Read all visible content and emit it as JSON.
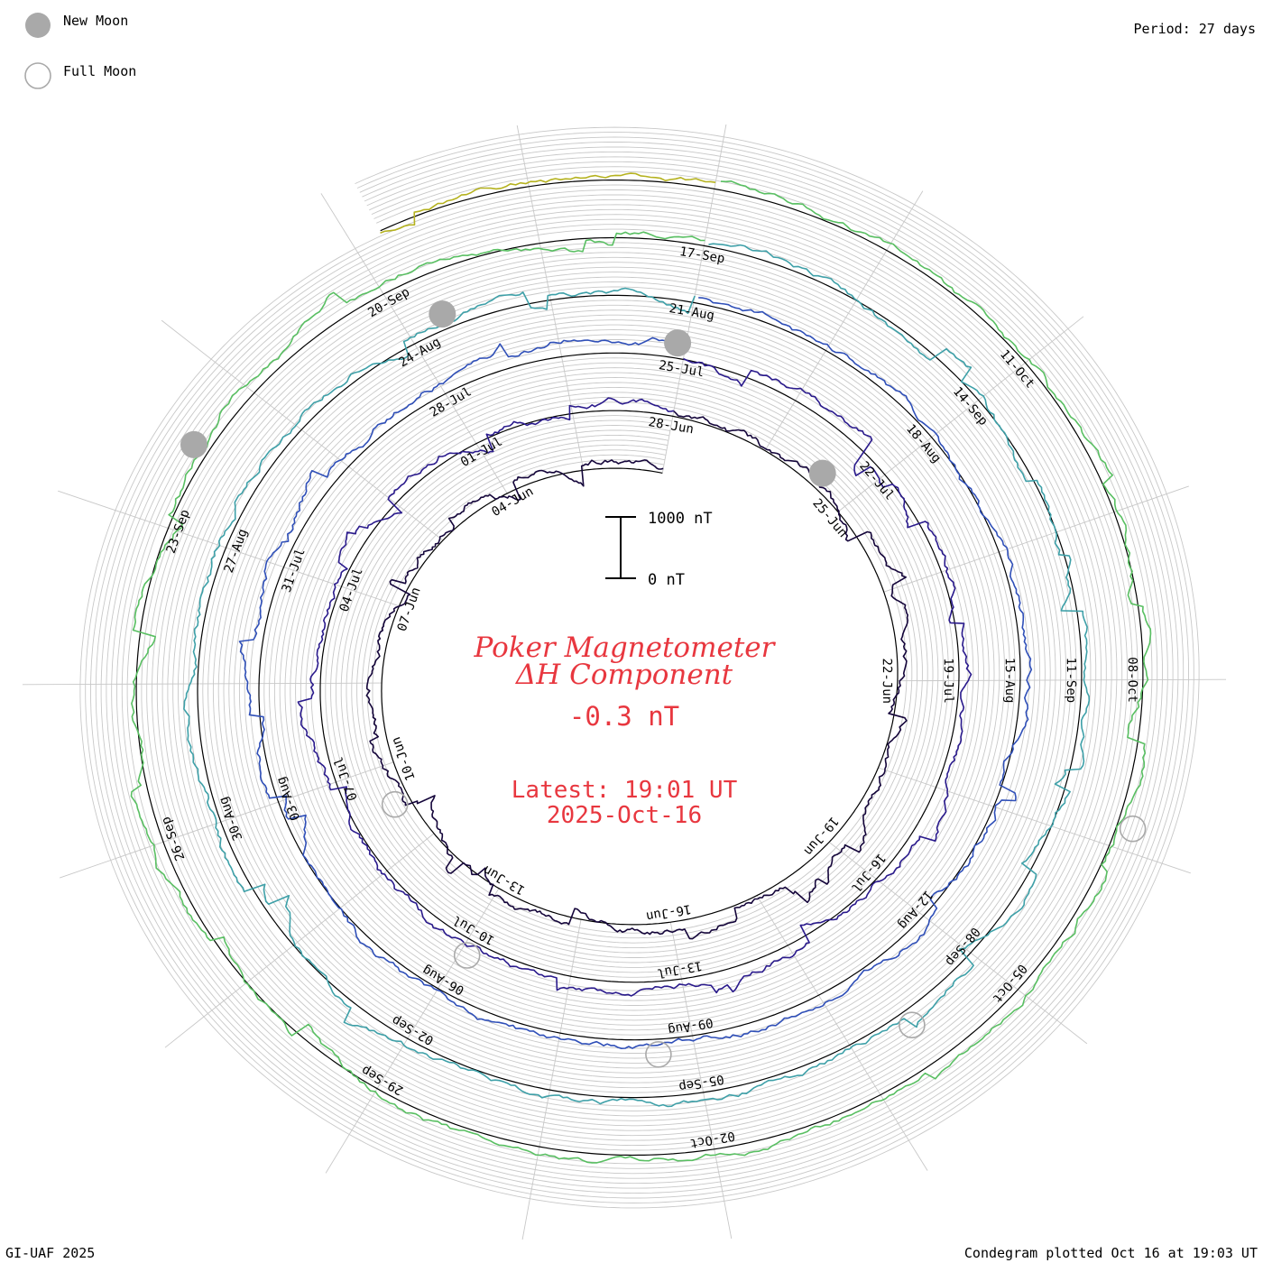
{
  "page": {
    "legend": {
      "new_moon_label": "New Moon",
      "full_moon_label": "Full Moon"
    },
    "period_label": "Period: 27 days",
    "footer_left": "GI-UAF 2025",
    "footer_right": "Condegram plotted Oct 16 at 19:03 UT"
  },
  "chart_data": {
    "type": "spiral-condegram",
    "title_line1": "Poker Magnetometer",
    "title_line2": "ΔH Component",
    "current_value": "-0.3 nT",
    "latest_time": "Latest: 19:01 UT",
    "latest_date": "2025-Oct-16",
    "scale_top_label": "1000 nT",
    "scale_bottom_label": "0 nT",
    "period_days": 27,
    "start_date": "2025-06-01",
    "end_date": "2025-10-16",
    "date_ticks": [
      {
        "label": "04-Jun",
        "day": 3
      },
      {
        "label": "07-Jun",
        "day": 6
      },
      {
        "label": "10-Jun",
        "day": 9
      },
      {
        "label": "13-Jun",
        "day": 12
      },
      {
        "label": "16-Jun",
        "day": 15
      },
      {
        "label": "19-Jun",
        "day": 18
      },
      {
        "label": "22-Jun",
        "day": 21
      },
      {
        "label": "25-Jun",
        "day": 24
      },
      {
        "label": "28-Jun",
        "day": 27
      },
      {
        "label": "01-Jul",
        "day": 30
      },
      {
        "label": "04-Jul",
        "day": 33
      },
      {
        "label": "07-Jul",
        "day": 36
      },
      {
        "label": "10-Jul",
        "day": 39
      },
      {
        "label": "13-Jul",
        "day": 42
      },
      {
        "label": "16-Jul",
        "day": 45
      },
      {
        "label": "19-Jul",
        "day": 48
      },
      {
        "label": "22-Jul",
        "day": 51
      },
      {
        "label": "25-Jul",
        "day": 54
      },
      {
        "label": "28-Jul",
        "day": 57
      },
      {
        "label": "31-Jul",
        "day": 60
      },
      {
        "label": "03-Aug",
        "day": 63
      },
      {
        "label": "06-Aug",
        "day": 66
      },
      {
        "label": "09-Aug",
        "day": 69
      },
      {
        "label": "12-Aug",
        "day": 72
      },
      {
        "label": "15-Aug",
        "day": 75
      },
      {
        "label": "18-Aug",
        "day": 78
      },
      {
        "label": "21-Aug",
        "day": 81
      },
      {
        "label": "24-Aug",
        "day": 84
      },
      {
        "label": "27-Aug",
        "day": 87
      },
      {
        "label": "30-Aug",
        "day": 90
      },
      {
        "label": "02-Sep",
        "day": 93
      },
      {
        "label": "05-Sep",
        "day": 96
      },
      {
        "label": "08-Sep",
        "day": 99
      },
      {
        "label": "11-Sep",
        "day": 102
      },
      {
        "label": "14-Sep",
        "day": 105
      },
      {
        "label": "17-Sep",
        "day": 108
      },
      {
        "label": "20-Sep",
        "day": 111
      },
      {
        "label": "23-Sep",
        "day": 114
      },
      {
        "label": "26-Sep",
        "day": 117
      },
      {
        "label": "29-Sep",
        "day": 120
      },
      {
        "label": "02-Oct",
        "day": 123
      },
      {
        "label": "05-Oct",
        "day": 126
      },
      {
        "label": "08-Oct",
        "day": 129
      },
      {
        "label": "11-Oct",
        "day": 132
      }
    ],
    "new_moons_day": [
      24.6,
      54.1,
      83.6,
      113.2
    ],
    "full_moons_day": [
      9.7,
      39.1,
      68.6,
      98.1,
      127.7
    ],
    "turn_colors": [
      "#14053a",
      "#2a1a8c",
      "#2f4fb8",
      "#3ea0a8",
      "#59bf62",
      "#b5b21f",
      "#c88a16",
      "#c2561a",
      "#b81a1a"
    ],
    "colors": {
      "title": "#e8373f",
      "ring": "#000000",
      "grid": "#c8c8c8",
      "moon_fill": "#a9a9a9"
    }
  }
}
